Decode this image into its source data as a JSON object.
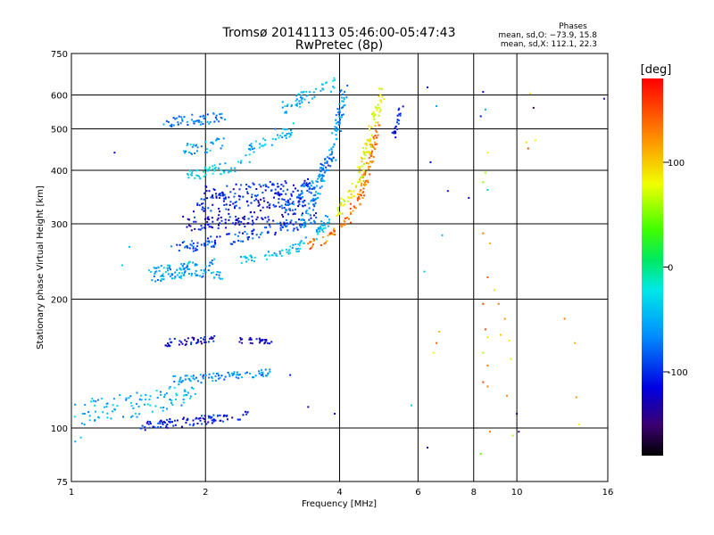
{
  "chart_data": {
    "type": "scatter",
    "title": "Tromsø 20141113 05:46:00-05:47:43",
    "subtitle": "RwPretec (8p)",
    "xlabel": "Frequency [MHz]",
    "ylabel": "Stationary phase Virtual Height [km]",
    "x_scale": "log",
    "y_scale": "log",
    "xlim": [
      1,
      16
    ],
    "ylim": [
      75,
      750
    ],
    "x_ticks": [
      1,
      2,
      4,
      6,
      8,
      10,
      16
    ],
    "x_tick_labels": [
      "1",
      "2",
      "4",
      "6",
      "8",
      "10",
      "16"
    ],
    "y_ticks": [
      75,
      100,
      200,
      300,
      400,
      500,
      600,
      750
    ],
    "y_tick_labels": [
      "75",
      "100",
      "200",
      "300",
      "400",
      "500",
      "600",
      "750"
    ],
    "grid": true,
    "stats": {
      "heading": "Phases",
      "o_line": "mean, sd,O: −73.9, 15.8",
      "x_line": "mean, sd,X: 112.1, 22.3"
    },
    "colorbar": {
      "label": "[deg]",
      "range": [
        -180,
        180
      ],
      "ticks": [
        100,
        0,
        -100
      ],
      "tick_labels": [
        "100",
        "0",
        "-100"
      ]
    },
    "traces": [
      {
        "f": [
          1.4,
          1.6,
          1.9,
          2.2,
          2.5
        ],
        "h": [
          100,
          102,
          104,
          106,
          108
        ],
        "phase": -110,
        "spread": 0.05
      },
      {
        "f": [
          1.0,
          1.3,
          1.6,
          1.9
        ],
        "h": [
          108,
          112,
          116,
          121
        ],
        "phase": -55,
        "spread": 0.13
      },
      {
        "f": [
          1.7,
          2.0,
          2.4,
          2.8
        ],
        "h": [
          130,
          131,
          133,
          135
        ],
        "phase": -70,
        "spread": 0.04
      },
      {
        "f": [
          1.6,
          1.9,
          2.1
        ],
        "h": [
          158,
          160,
          161
        ],
        "phase": -115,
        "spread": 0.04
      },
      {
        "f": [
          2.35,
          2.6,
          2.8
        ],
        "h": [
          160,
          160,
          158
        ],
        "phase": -125,
        "spread": 0.03
      },
      {
        "f": [
          1.5,
          1.75,
          2.0,
          2.2
        ],
        "h": [
          222,
          228,
          230,
          226
        ],
        "phase": -60,
        "spread": 0.04
      },
      {
        "f": [
          1.5,
          1.75,
          2.0,
          2.1
        ],
        "h": [
          233,
          238,
          243,
          246
        ],
        "phase": -60,
        "spread": 0.04
      },
      {
        "f": [
          1.7,
          2.0,
          2.4,
          2.8,
          3.2,
          3.6
        ],
        "h": [
          262,
          270,
          280,
          290,
          300,
          310
        ],
        "phase": -95,
        "spread": 0.06
      },
      {
        "f": [
          2.4,
          2.8,
          3.2,
          3.5,
          3.8
        ],
        "h": [
          245,
          253,
          262,
          280,
          310
        ],
        "phase": -50,
        "spread": 0.05
      },
      {
        "f": [
          1.8,
          2.2,
          2.6,
          3.0,
          3.4
        ],
        "h": [
          300,
          305,
          310,
          320,
          330
        ],
        "phase": -115,
        "spread": 0.08
      },
      {
        "f": [
          1.9,
          2.3,
          2.8,
          3.3
        ],
        "h": [
          330,
          335,
          340,
          345
        ],
        "phase": -110,
        "spread": 0.08
      },
      {
        "f": [
          2.0,
          2.5,
          3.0,
          3.5
        ],
        "h": [
          355,
          360,
          365,
          370
        ],
        "phase": -105,
        "spread": 0.07
      },
      {
        "f": [
          3.3,
          3.5,
          3.7,
          3.9,
          4.0,
          4.1
        ],
        "h": [
          300,
          340,
          400,
          470,
          540,
          620
        ],
        "phase": -65,
        "spread": 0.06
      },
      {
        "f": [
          3.0,
          3.3,
          3.6,
          3.9
        ],
        "h": [
          320,
          350,
          390,
          440
        ],
        "phase": -80,
        "spread": 0.06
      },
      {
        "f": [
          3.4,
          3.8,
          4.2,
          4.5,
          4.7,
          4.9
        ],
        "h": [
          265,
          280,
          310,
          360,
          430,
          520
        ],
        "phase": 130,
        "spread": 0.05
      },
      {
        "f": [
          4.0,
          4.4,
          4.6,
          4.8,
          5.0
        ],
        "h": [
          320,
          380,
          450,
          530,
          610
        ],
        "phase": 80,
        "spread": 0.06
      },
      {
        "f": [
          2.4,
          2.6,
          2.9,
          3.1
        ],
        "h": [
          420,
          450,
          480,
          500
        ],
        "phase": -55,
        "spread": 0.08
      },
      {
        "f": [
          1.8,
          2.0,
          2.2
        ],
        "h": [
          450,
          455,
          460
        ],
        "phase": -60,
        "spread": 0.07
      },
      {
        "f": [
          1.8,
          2.1,
          2.4
        ],
        "h": [
          390,
          400,
          410
        ],
        "phase": -40,
        "spread": 0.06
      },
      {
        "f": [
          1.6,
          1.9,
          2.2
        ],
        "h": [
          520,
          525,
          530
        ],
        "phase": -75,
        "spread": 0.06
      },
      {
        "f": [
          3.0,
          3.3,
          3.7,
          4.0
        ],
        "h": [
          560,
          590,
          620,
          650
        ],
        "phase": -50,
        "spread": 0.07
      },
      {
        "f": [
          5.3,
          5.5
        ],
        "h": [
          480,
          560
        ],
        "phase": -110,
        "spread": 0.04
      }
    ],
    "points": [
      {
        "f": 1.25,
        "h": 440,
        "phase": -120
      },
      {
        "f": 1.35,
        "h": 265,
        "phase": -50
      },
      {
        "f": 1.3,
        "h": 240,
        "phase": -40
      },
      {
        "f": 1.05,
        "h": 95,
        "phase": -40
      },
      {
        "f": 1.02,
        "h": 93,
        "phase": -60
      },
      {
        "f": 3.1,
        "h": 133,
        "phase": -110
      },
      {
        "f": 3.4,
        "h": 112,
        "phase": -140
      },
      {
        "f": 3.9,
        "h": 108,
        "phase": -120
      },
      {
        "f": 5.8,
        "h": 113,
        "phase": -40
      },
      {
        "f": 6.3,
        "h": 625,
        "phase": -110
      },
      {
        "f": 6.4,
        "h": 418,
        "phase": -120
      },
      {
        "f": 6.6,
        "h": 565,
        "phase": -60
      },
      {
        "f": 7.0,
        "h": 358,
        "phase": -110
      },
      {
        "f": 6.8,
        "h": 282,
        "phase": -50
      },
      {
        "f": 6.2,
        "h": 232,
        "phase": -40
      },
      {
        "f": 7.8,
        "h": 345,
        "phase": -120
      },
      {
        "f": 6.6,
        "h": 158,
        "phase": 140
      },
      {
        "f": 6.7,
        "h": 168,
        "phase": 110
      },
      {
        "f": 6.5,
        "h": 150,
        "phase": 80
      },
      {
        "f": 6.3,
        "h": 90,
        "phase": -130
      },
      {
        "f": 8.4,
        "h": 610,
        "phase": -120
      },
      {
        "f": 8.5,
        "h": 555,
        "phase": -60
      },
      {
        "f": 8.3,
        "h": 535,
        "phase": -110
      },
      {
        "f": 8.6,
        "h": 440,
        "phase": 80
      },
      {
        "f": 8.5,
        "h": 395,
        "phase": 60
      },
      {
        "f": 8.4,
        "h": 375,
        "phase": 50
      },
      {
        "f": 8.6,
        "h": 360,
        "phase": -40
      },
      {
        "f": 8.4,
        "h": 285,
        "phase": 130
      },
      {
        "f": 8.7,
        "h": 270,
        "phase": 110
      },
      {
        "f": 8.6,
        "h": 225,
        "phase": 140
      },
      {
        "f": 8.9,
        "h": 210,
        "phase": 90
      },
      {
        "f": 8.4,
        "h": 195,
        "phase": 150
      },
      {
        "f": 9.1,
        "h": 195,
        "phase": 130
      },
      {
        "f": 9.4,
        "h": 180,
        "phase": 120
      },
      {
        "f": 8.5,
        "h": 170,
        "phase": 150
      },
      {
        "f": 8.6,
        "h": 163,
        "phase": 90
      },
      {
        "f": 8.4,
        "h": 150,
        "phase": 60
      },
      {
        "f": 8.6,
        "h": 140,
        "phase": 130
      },
      {
        "f": 8.4,
        "h": 128,
        "phase": 150
      },
      {
        "f": 8.6,
        "h": 125,
        "phase": 130
      },
      {
        "f": 8.7,
        "h": 98,
        "phase": 130
      },
      {
        "f": 8.3,
        "h": 87,
        "phase": 40
      },
      {
        "f": 9.6,
        "h": 160,
        "phase": 80
      },
      {
        "f": 9.7,
        "h": 145,
        "phase": 70
      },
      {
        "f": 9.5,
        "h": 119,
        "phase": 120
      },
      {
        "f": 9.8,
        "h": 96,
        "phase": 60
      },
      {
        "f": 10.0,
        "h": 108,
        "phase": -140
      },
      {
        "f": 10.1,
        "h": 98,
        "phase": -150
      },
      {
        "f": 10.7,
        "h": 605,
        "phase": 90
      },
      {
        "f": 10.9,
        "h": 560,
        "phase": -160
      },
      {
        "f": 10.6,
        "h": 450,
        "phase": 150
      },
      {
        "f": 10.5,
        "h": 465,
        "phase": 90
      },
      {
        "f": 12.8,
        "h": 180,
        "phase": 130
      },
      {
        "f": 13.5,
        "h": 158,
        "phase": 110
      },
      {
        "f": 13.6,
        "h": 118,
        "phase": 120
      },
      {
        "f": 13.8,
        "h": 102,
        "phase": 80
      },
      {
        "f": 15.7,
        "h": 588,
        "phase": -140
      },
      {
        "f": 9.2,
        "h": 165,
        "phase": 100
      },
      {
        "f": 11.0,
        "h": 470,
        "phase": 80
      }
    ]
  }
}
